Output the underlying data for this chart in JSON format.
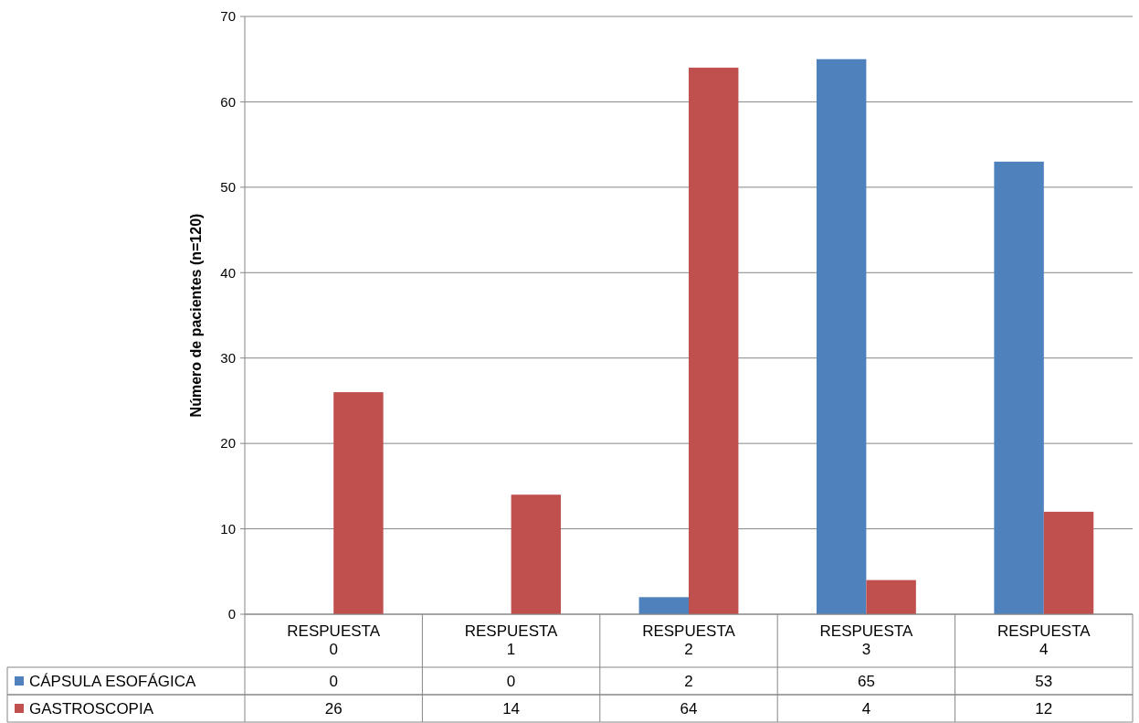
{
  "chart_data": {
    "type": "bar",
    "ylabel": "Número de pacientes  (n=120)",
    "categories": [
      "RESPUESTA 0",
      "RESPUESTA 1",
      "RESPUESTA 2",
      "RESPUESTA 3",
      "RESPUESTA 4"
    ],
    "series": [
      {
        "name": "CÁPSULA ESOFÁGICA",
        "color": "#4f81bd",
        "values": [
          0,
          0,
          2,
          65,
          53
        ]
      },
      {
        "name": "GASTROSCOPIA",
        "color": "#c0504d",
        "values": [
          26,
          14,
          64,
          4,
          12
        ]
      }
    ],
    "ylim": [
      0,
      70
    ],
    "yticks": [
      0,
      10,
      20,
      30,
      40,
      50,
      60,
      70
    ],
    "grid": "y",
    "legend": "bottom",
    "data_labels": true
  }
}
